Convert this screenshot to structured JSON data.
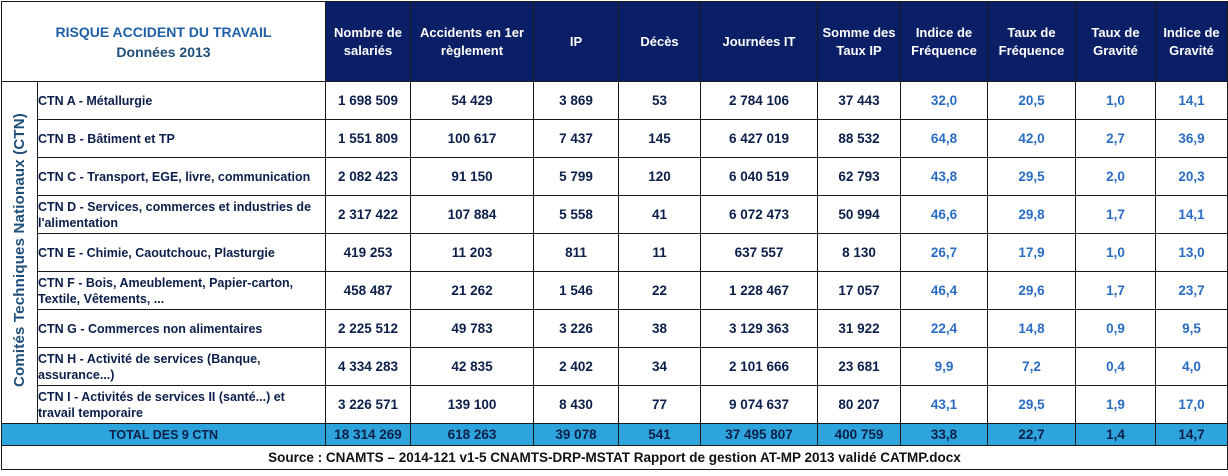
{
  "title": {
    "line1": "RISQUE ACCIDENT DU TRAVAIL",
    "line2": "Données 2013"
  },
  "side_label": "Comités Techniques Nationaux  (CTN)",
  "columns": [
    "Nombre de salariés",
    "Accidents en 1er règlement",
    "IP",
    "Décès",
    "Journées IT",
    "Somme des Taux IP",
    "Indice de Fréquence",
    "Taux de Fréquence",
    "Taux de Gravité",
    "Indice de Gravité"
  ],
  "rows": [
    {
      "label": "CTN A - Métallurgie",
      "values": [
        "1 698 509",
        "54 429",
        "3 869",
        "53",
        "2 784 106",
        "37 443",
        "32,0",
        "20,5",
        "1,0",
        "14,1"
      ]
    },
    {
      "label": "CTN B - Bâtiment et TP",
      "values": [
        "1 551 809",
        "100 617",
        "7 437",
        "145",
        "6 427 019",
        "88 532",
        "64,8",
        "42,0",
        "2,7",
        "36,9"
      ]
    },
    {
      "label": "CTN C - Transport, EGE, livre, communication",
      "values": [
        "2 082 423",
        "91 150",
        "5 799",
        "120",
        "6 040 519",
        "62 793",
        "43,8",
        "29,5",
        "2,0",
        "20,3"
      ]
    },
    {
      "label": "CTN D - Services, commerces et industries de l'alimentation",
      "values": [
        "2 317 422",
        "107 884",
        "5 558",
        "41",
        "6 072 473",
        "50 994",
        "46,6",
        "29,8",
        "1,7",
        "14,1"
      ]
    },
    {
      "label": "CTN E - Chimie, Caoutchouc, Plasturgie",
      "values": [
        "419 253",
        "11 203",
        "811",
        "11",
        "637 557",
        "8 130",
        "26,7",
        "17,9",
        "1,0",
        "13,0"
      ]
    },
    {
      "label": "CTN F - Bois, Ameublement, Papier-carton, Textile, Vêtements, ...",
      "values": [
        "458 487",
        "21 262",
        "1 546",
        "22",
        "1 228 467",
        "17 057",
        "46,4",
        "29,6",
        "1,7",
        "23,7"
      ]
    },
    {
      "label": "CTN G - Commerces non alimentaires",
      "values": [
        "2 225 512",
        "49 783",
        "3 226",
        "38",
        "3 129 363",
        "31 922",
        "22,4",
        "14,8",
        "0,9",
        "9,5"
      ]
    },
    {
      "label": "CTN H - Activité de services (Banque, assurance...)",
      "values": [
        "4 334 283",
        "42 835",
        "2 402",
        "34",
        "2 101 666",
        "23 681",
        "9,9",
        "7,2",
        "0,4",
        "4,0"
      ]
    },
    {
      "label": "CTN I - Activités de services II (santé...) et travail temporaire",
      "values": [
        "3 226 571",
        "139 100",
        "8 430",
        "77",
        "9 074 637",
        "80 207",
        "43,1",
        "29,5",
        "1,9",
        "17,0"
      ]
    }
  ],
  "total": {
    "label": "TOTAL DES 9 CTN",
    "values": [
      "18 314 269",
      "618 263",
      "39 078",
      "541",
      "37 495 807",
      "400 759",
      "33,8",
      "22,7",
      "1,4",
      "14,7"
    ]
  },
  "source": "Source : CNAMTS – 2014-121 v1-5 CNAMTS-DRP-MSTAT Rapport de gestion AT-MP 2013 validé CATMP.docx",
  "colors": {
    "header_bg": "#0b1f66",
    "total_bg": "#2ea4dc",
    "index_text": "#2a6cc4",
    "body_text": "#0b1f4a"
  }
}
